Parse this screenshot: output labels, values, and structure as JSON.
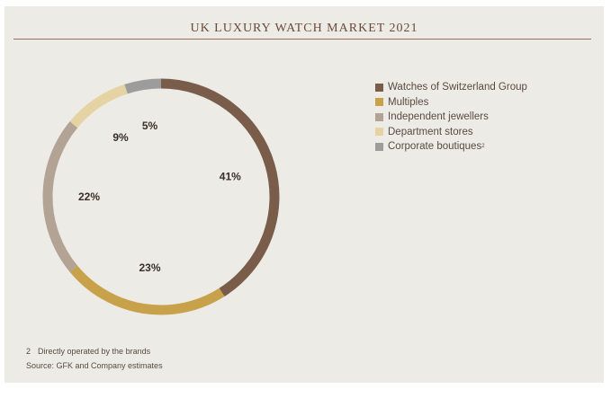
{
  "colors": {
    "panel_bg": "#ecebe6",
    "title": "#6b4a3a",
    "rule": "#9a6e5e"
  },
  "chart_data": {
    "type": "pie",
    "style": "donut",
    "title": "UK LUXURY WATCH MARKET 2021",
    "slices": [
      {
        "name": "Watches of Switzerland Group",
        "value": 41,
        "label": "41%",
        "color": "#7a5c4a"
      },
      {
        "name": "Multiples",
        "value": 23,
        "label": "23%",
        "color": "#c8a24a"
      },
      {
        "name": "Independent jewellers",
        "value": 22,
        "label": "22%",
        "color": "#b2a395"
      },
      {
        "name": "Department stores",
        "value": 9,
        "label": "9%",
        "color": "#e6d3a3"
      },
      {
        "name": "Corporate boutiques",
        "value": 5,
        "label": "5%",
        "color": "#9c9c9c",
        "footnote_mark": "2"
      }
    ],
    "legend_placement": "right"
  },
  "footnotes": {
    "note_number": "2",
    "note_text": "Directly operated by the brands",
    "source": "Source: GFK and Company estimates"
  }
}
